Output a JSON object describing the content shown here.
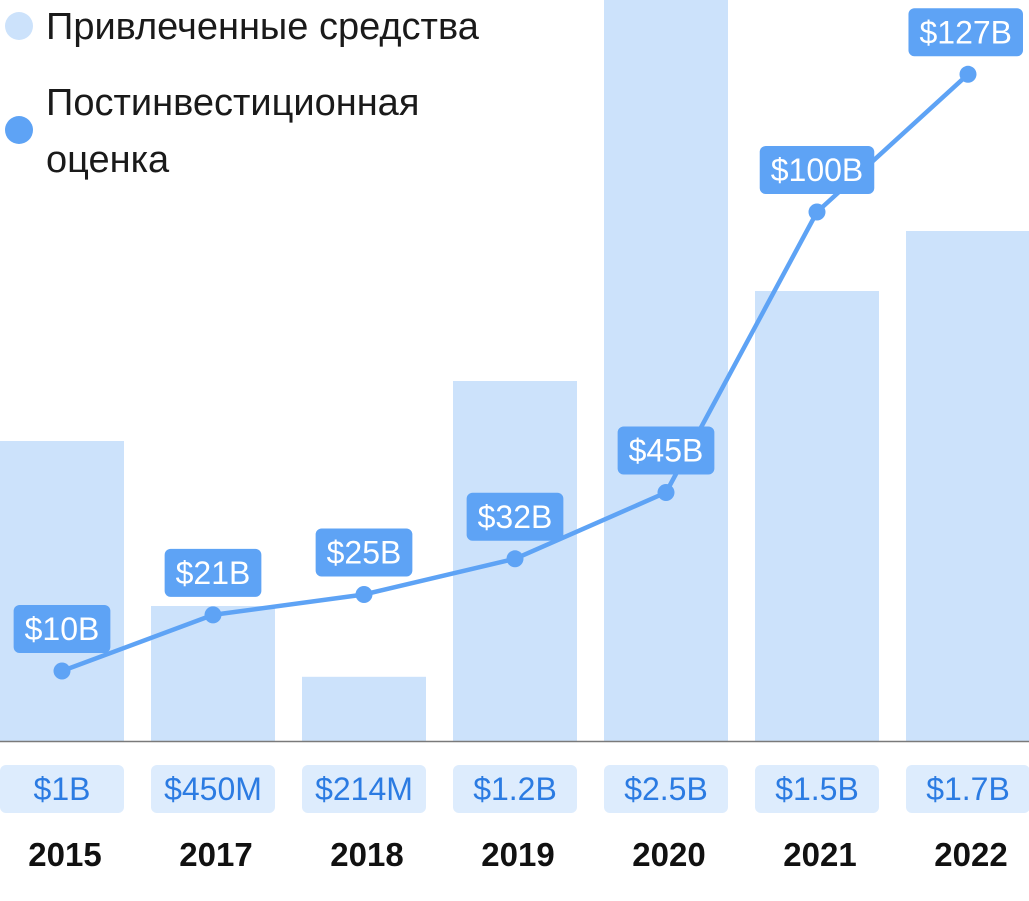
{
  "chart_data": {
    "type": "bar",
    "categories": [
      "2015",
      "2017",
      "2018",
      "2019",
      "2020",
      "2021",
      "2022"
    ],
    "series": [
      {
        "name": "Привлеченные средства",
        "type": "bar",
        "values": [
          1.0,
          0.45,
          0.214,
          1.2,
          2.5,
          1.5,
          1.7
        ],
        "labels": [
          "$1B",
          "$450M",
          "$214M",
          "$1.2B",
          "$2.5B",
          "$1.5B",
          "$1.7B"
        ]
      },
      {
        "name": "Постинвестиционная оценка",
        "type": "line",
        "values": [
          10,
          21,
          25,
          32,
          45,
          100,
          127
        ],
        "labels": [
          "$10B",
          "$21B",
          "$25B",
          "$32B",
          "$45B",
          "$100B",
          "$127B"
        ]
      }
    ],
    "legend": {
      "position": "top-left",
      "items": [
        {
          "label_lines": [
            "Привлеченные средства"
          ]
        },
        {
          "label_lines": [
            "Постинвестиционная",
            "оценка"
          ]
        }
      ]
    },
    "grid": false,
    "colors": {
      "bar": "#cce2fb",
      "line": "#5ea3f5",
      "raised_text": "#2b7be2",
      "raised_bg": "#ddecfd",
      "year_text": "#111111",
      "baseline": "#7a7a7a"
    }
  }
}
